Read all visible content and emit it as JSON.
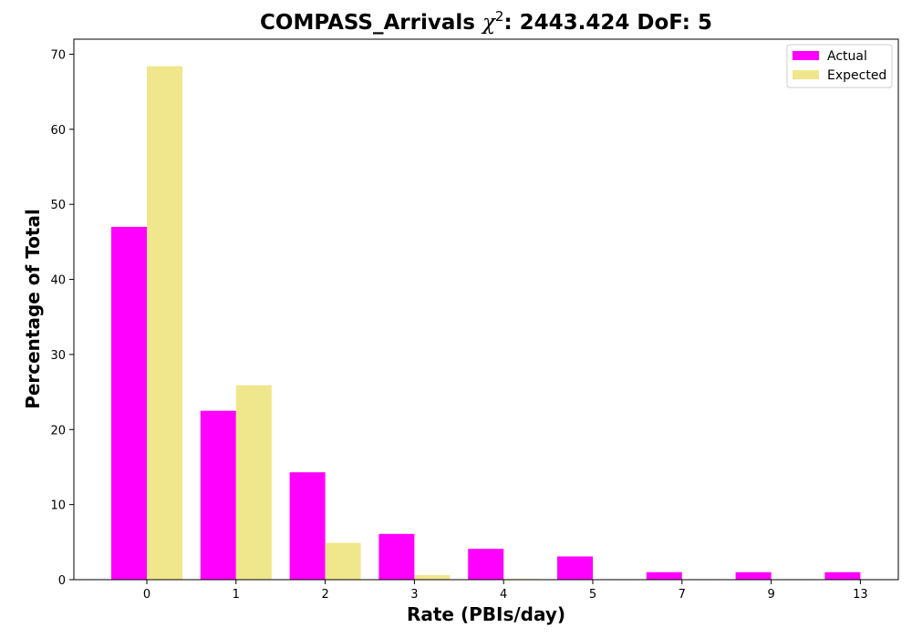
{
  "chart_data": {
    "type": "bar",
    "title_main": "COMPASS_Arrivals ",
    "title_chi": "χ",
    "title_exp": "2",
    "title_tail": ": 2443.424 DoF: 5",
    "xlabel": "Rate (PBIs/day)",
    "ylabel": "Percentage of Total",
    "categories": [
      "0",
      "1",
      "2",
      "3",
      "4",
      "5",
      "7",
      "9",
      "13"
    ],
    "series": [
      {
        "name": "Actual",
        "color": "#ff00ff",
        "values": [
          47.0,
          22.5,
          14.3,
          6.1,
          4.1,
          3.1,
          1.0,
          1.0,
          1.0
        ]
      },
      {
        "name": "Expected",
        "color": "#f0e68c",
        "values": [
          68.4,
          25.9,
          4.9,
          0.6,
          0.1,
          0.0,
          0.0,
          0.0,
          0.0
        ]
      }
    ],
    "yticks": [
      0,
      10,
      20,
      30,
      40,
      50,
      60,
      70
    ],
    "ylim": [
      0,
      72
    ],
    "legend_position": "top-right",
    "grid": false
  }
}
